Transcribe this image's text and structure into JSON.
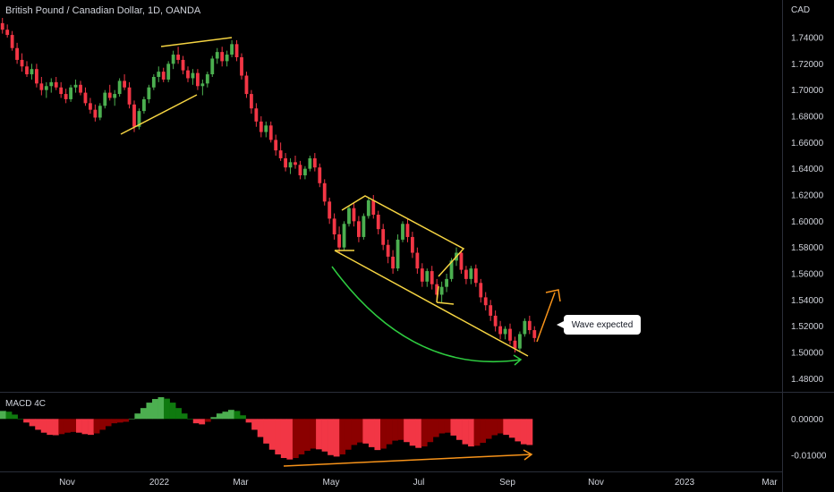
{
  "chart_data": [
    {
      "type": "candlestick",
      "title": "British Pound / Canadian Dollar, 1D, OANDA",
      "currency": "CAD",
      "x_ticks": [
        "Nov",
        "2022",
        "Mar",
        "May",
        "Jul",
        "Sep",
        "Nov",
        "2023",
        "Mar"
      ],
      "y_ticks": [
        "1.74000",
        "1.72000",
        "1.70000",
        "1.68000",
        "1.66000",
        "1.64000",
        "1.62000",
        "1.60000",
        "1.58000",
        "1.56000",
        "1.54000",
        "1.52000",
        "1.50000",
        "1.48000"
      ],
      "ylim": [
        1.47,
        1.755
      ],
      "colors": {
        "up": "#4caf50",
        "down": "#f23645",
        "pattern": "#f5d442",
        "arc": "#2ecc40",
        "arrow": "#f7931a"
      },
      "series": [
        {
          "values": [
            [
              1.751,
              1.755,
              1.743,
              1.746
            ],
            [
              1.746,
              1.75,
              1.74,
              1.742
            ],
            [
              1.742,
              1.745,
              1.73,
              1.732
            ],
            [
              1.732,
              1.736,
              1.72,
              1.723
            ],
            [
              1.723,
              1.728,
              1.714,
              1.718
            ],
            [
              1.718,
              1.722,
              1.71,
              1.712
            ],
            [
              1.712,
              1.72,
              1.708,
              1.716
            ],
            [
              1.716,
              1.72,
              1.702,
              1.705
            ],
            [
              1.705,
              1.71,
              1.696,
              1.7
            ],
            [
              1.7,
              1.706,
              1.694,
              1.703
            ],
            [
              1.703,
              1.709,
              1.698,
              1.706
            ],
            [
              1.706,
              1.71,
              1.7,
              1.702
            ],
            [
              1.702,
              1.706,
              1.694,
              1.697
            ],
            [
              1.697,
              1.701,
              1.69,
              1.693
            ],
            [
              1.693,
              1.704,
              1.691,
              1.702
            ],
            [
              1.702,
              1.708,
              1.698,
              1.704
            ],
            [
              1.704,
              1.707,
              1.696,
              1.698
            ],
            [
              1.698,
              1.702,
              1.688,
              1.69
            ],
            [
              1.69,
              1.694,
              1.682,
              1.685
            ],
            [
              1.685,
              1.689,
              1.676,
              1.679
            ],
            [
              1.679,
              1.69,
              1.677,
              1.688
            ],
            [
              1.688,
              1.7,
              1.686,
              1.698
            ],
            [
              1.698,
              1.704,
              1.692,
              1.694
            ],
            [
              1.694,
              1.7,
              1.688,
              1.697
            ],
            [
              1.697,
              1.709,
              1.695,
              1.707
            ],
            [
              1.707,
              1.712,
              1.7,
              1.702
            ],
            [
              1.702,
              1.706,
              1.686,
              1.689
            ],
            [
              1.689,
              1.692,
              1.668,
              1.672
            ],
            [
              1.672,
              1.686,
              1.67,
              1.684
            ],
            [
              1.684,
              1.695,
              1.682,
              1.693
            ],
            [
              1.693,
              1.704,
              1.69,
              1.702
            ],
            [
              1.702,
              1.712,
              1.7,
              1.71
            ],
            [
              1.71,
              1.718,
              1.706,
              1.714
            ],
            [
              1.714,
              1.717,
              1.706,
              1.708
            ],
            [
              1.708,
              1.722,
              1.706,
              1.72
            ],
            [
              1.72,
              1.73,
              1.716,
              1.727
            ],
            [
              1.727,
              1.733,
              1.72,
              1.723
            ],
            [
              1.723,
              1.726,
              1.712,
              1.715
            ],
            [
              1.715,
              1.718,
              1.706,
              1.709
            ],
            [
              1.709,
              1.716,
              1.704,
              1.713
            ],
            [
              1.713,
              1.716,
              1.7,
              1.703
            ],
            [
              1.703,
              1.708,
              1.696,
              1.705
            ],
            [
              1.705,
              1.714,
              1.702,
              1.712
            ],
            [
              1.712,
              1.726,
              1.71,
              1.724
            ],
            [
              1.724,
              1.732,
              1.72,
              1.729
            ],
            [
              1.729,
              1.733,
              1.718,
              1.722
            ],
            [
              1.722,
              1.73,
              1.718,
              1.727
            ],
            [
              1.727,
              1.738,
              1.725,
              1.735
            ],
            [
              1.735,
              1.738,
              1.722,
              1.725
            ],
            [
              1.725,
              1.728,
              1.708,
              1.711
            ],
            [
              1.711,
              1.714,
              1.694,
              1.697
            ],
            [
              1.697,
              1.7,
              1.682,
              1.686
            ],
            [
              1.686,
              1.69,
              1.672,
              1.676
            ],
            [
              1.676,
              1.68,
              1.664,
              1.668
            ],
            [
              1.668,
              1.676,
              1.664,
              1.673
            ],
            [
              1.673,
              1.676,
              1.66,
              1.662
            ],
            [
              1.662,
              1.666,
              1.65,
              1.654
            ],
            [
              1.654,
              1.66,
              1.646,
              1.648
            ],
            [
              1.648,
              1.652,
              1.638,
              1.641
            ],
            [
              1.641,
              1.648,
              1.636,
              1.645
            ],
            [
              1.645,
              1.65,
              1.64,
              1.643
            ],
            [
              1.643,
              1.646,
              1.632,
              1.635
            ],
            [
              1.635,
              1.642,
              1.632,
              1.64
            ],
            [
              1.64,
              1.65,
              1.638,
              1.648
            ],
            [
              1.648,
              1.652,
              1.638,
              1.641
            ],
            [
              1.641,
              1.644,
              1.626,
              1.629
            ],
            [
              1.629,
              1.632,
              1.612,
              1.615
            ],
            [
              1.615,
              1.618,
              1.598,
              1.602
            ],
            [
              1.602,
              1.606,
              1.586,
              1.59
            ],
            [
              1.59,
              1.596,
              1.576,
              1.58
            ],
            [
              1.58,
              1.6,
              1.578,
              1.598
            ],
            [
              1.598,
              1.612,
              1.596,
              1.61
            ],
            [
              1.61,
              1.614,
              1.596,
              1.6
            ],
            [
              1.6,
              1.604,
              1.584,
              1.588
            ],
            [
              1.588,
              1.606,
              1.586,
              1.604
            ],
            [
              1.604,
              1.618,
              1.602,
              1.616
            ],
            [
              1.616,
              1.62,
              1.602,
              1.605
            ],
            [
              1.605,
              1.608,
              1.59,
              1.594
            ],
            [
              1.594,
              1.598,
              1.578,
              1.582
            ],
            [
              1.582,
              1.586,
              1.568,
              1.573
            ],
            [
              1.573,
              1.578,
              1.56,
              1.564
            ],
            [
              1.564,
              1.59,
              1.562,
              1.586
            ],
            [
              1.586,
              1.6,
              1.584,
              1.598
            ],
            [
              1.598,
              1.602,
              1.584,
              1.588
            ],
            [
              1.588,
              1.592,
              1.572,
              1.576
            ],
            [
              1.576,
              1.58,
              1.56,
              1.564
            ],
            [
              1.564,
              1.568,
              1.55,
              1.554
            ],
            [
              1.554,
              1.564,
              1.55,
              1.562
            ],
            [
              1.562,
              1.566,
              1.548,
              1.552
            ],
            [
              1.552,
              1.556,
              1.54,
              1.544
            ],
            [
              1.544,
              1.554,
              1.538,
              1.55
            ],
            [
              1.55,
              1.56,
              1.546,
              1.556
            ],
            [
              1.556,
              1.572,
              1.554,
              1.57
            ],
            [
              1.57,
              1.58,
              1.566,
              1.576
            ],
            [
              1.576,
              1.578,
              1.56,
              1.563
            ],
            [
              1.563,
              1.566,
              1.552,
              1.556
            ],
            [
              1.556,
              1.566,
              1.552,
              1.564
            ],
            [
              1.564,
              1.567,
              1.55,
              1.553
            ],
            [
              1.553,
              1.556,
              1.538,
              1.542
            ],
            [
              1.542,
              1.546,
              1.532,
              1.536
            ],
            [
              1.536,
              1.54,
              1.524,
              1.528
            ],
            [
              1.528,
              1.532,
              1.516,
              1.52
            ],
            [
              1.52,
              1.524,
              1.51,
              1.514
            ],
            [
              1.514,
              1.52,
              1.51,
              1.518
            ],
            [
              1.518,
              1.522,
              1.506,
              1.509
            ],
            [
              1.509,
              1.512,
              1.5,
              1.503
            ],
            [
              1.503,
              1.516,
              1.501,
              1.514
            ],
            [
              1.514,
              1.526,
              1.512,
              1.524
            ],
            [
              1.524,
              1.528,
              1.514,
              1.517
            ],
            [
              1.517,
              1.52,
              1.508,
              1.511
            ]
          ]
        }
      ],
      "annotations": [
        {
          "label": "Wave expected"
        }
      ]
    },
    {
      "type": "bar",
      "title": "MACD 4C",
      "y_ticks": [
        "0.00000",
        "-0.01000"
      ],
      "ylim": [
        -0.0145,
        0.0065
      ],
      "colors": {
        "pos_up": "#4caf50",
        "pos_down": "#0f7a0f",
        "neg_down": "#f23645",
        "neg_up": "#8b0000"
      },
      "values": [
        0.0022,
        0.002,
        0.0012,
        0.0,
        -0.001,
        -0.002,
        -0.003,
        -0.0038,
        -0.0044,
        -0.0045,
        -0.0042,
        -0.0038,
        -0.0036,
        -0.0038,
        -0.0042,
        -0.0044,
        -0.004,
        -0.003,
        -0.002,
        -0.0012,
        -0.001,
        -0.0008,
        0.0,
        0.0015,
        0.003,
        0.0045,
        0.0055,
        0.006,
        0.0056,
        0.0045,
        0.003,
        0.0015,
        0.0,
        -0.0012,
        -0.0015,
        -0.0008,
        0.0005,
        0.0015,
        0.002,
        0.0025,
        0.0022,
        0.001,
        -0.001,
        -0.003,
        -0.005,
        -0.0068,
        -0.0085,
        -0.0098,
        -0.0108,
        -0.0112,
        -0.0108,
        -0.0098,
        -0.0088,
        -0.0082,
        -0.0084,
        -0.009,
        -0.01,
        -0.0104,
        -0.0098,
        -0.0085,
        -0.0072,
        -0.0065,
        -0.0068,
        -0.0078,
        -0.0086,
        -0.0082,
        -0.007,
        -0.006,
        -0.0058,
        -0.0064,
        -0.0074,
        -0.008,
        -0.0076,
        -0.0064,
        -0.005,
        -0.004,
        -0.0038,
        -0.0046,
        -0.0058,
        -0.007,
        -0.0076,
        -0.0074,
        -0.0066,
        -0.0055,
        -0.0045,
        -0.004,
        -0.0044,
        -0.0052,
        -0.0062,
        -0.007,
        -0.0072
      ]
    }
  ]
}
